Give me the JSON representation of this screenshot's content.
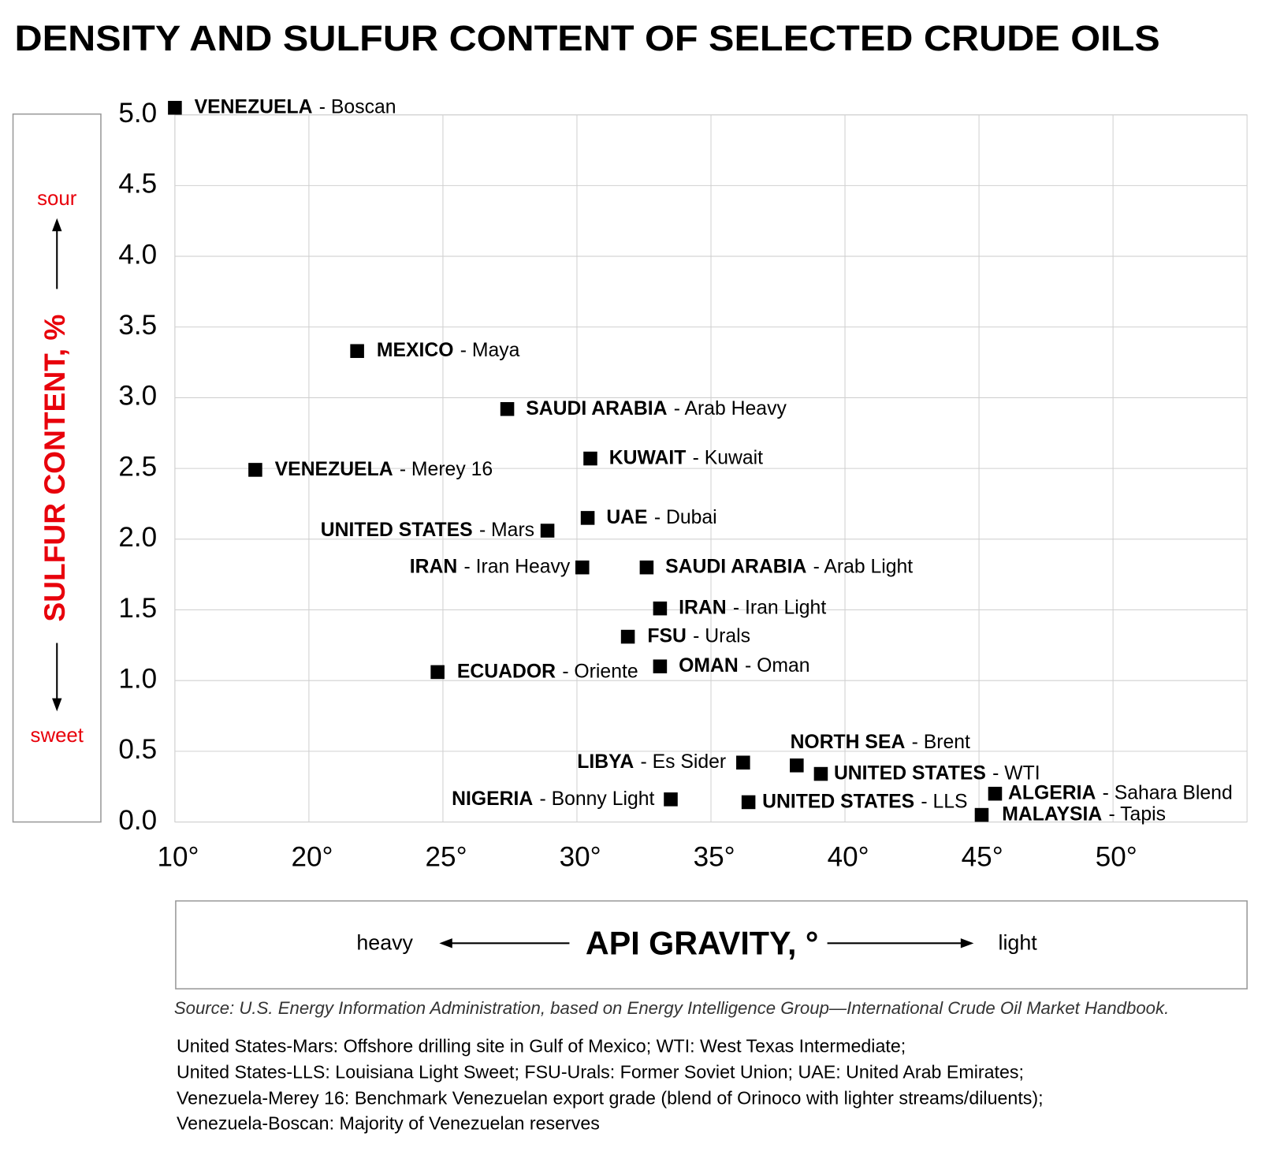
{
  "chart_data": {
    "type": "scatter",
    "title": "DENSITY AND SULFUR CONTENT OF SELECTED CRUDE OILS",
    "y_label": "SULFUR CONTENT, %",
    "y_top_note": "sour",
    "y_bottom_note": "sweet",
    "x_label": "API GRAVITY, °",
    "x_left_note": "heavy",
    "x_right_note": "light",
    "source": "Source: U.S. Energy Information Administration, based on Energy Intelligence Group—International Crude Oil Market Handbook.",
    "notes": [
      "United States-Mars: Offshore drilling site in Gulf of Mexico; WTI: West Texas Intermediate;",
      "United States-LLS: Louisiana Light Sweet; FSU-Urals: Former Soviet Union; UAE: United Arab Emirates;",
      "Venezuela-Merey 16: Benchmark Venezuelan export grade (blend of Orinoco with lighter streams/diluents);",
      "Venezuela-Boscan: Majority of Venezuelan reserves"
    ],
    "xlim": [
      10,
      55
    ],
    "xticks": [
      {
        "value": 10,
        "label": "10°"
      },
      {
        "value": 20,
        "label": "20°"
      },
      {
        "value": 25,
        "label": "25°"
      },
      {
        "value": 30,
        "label": "30°"
      },
      {
        "value": 35,
        "label": "35°"
      },
      {
        "value": 40,
        "label": "40°"
      },
      {
        "value": 45,
        "label": "45°"
      },
      {
        "value": 50,
        "label": "50°"
      }
    ],
    "ylim": [
      0,
      5
    ],
    "yticks": [
      {
        "value": 0,
        "label": "0.0"
      },
      {
        "value": 0.5,
        "label": "0.5"
      },
      {
        "value": 1,
        "label": "1.0"
      },
      {
        "value": 1.5,
        "label": "1.5"
      },
      {
        "value": 2,
        "label": "2.0"
      },
      {
        "value": 2.5,
        "label": "2.5"
      },
      {
        "value": 3,
        "label": "3.0"
      },
      {
        "value": 3.5,
        "label": "3.5"
      },
      {
        "value": 4,
        "label": "4.0"
      },
      {
        "value": 4.5,
        "label": "4.5"
      },
      {
        "value": 5,
        "label": "5.0"
      }
    ],
    "grid": true,
    "color": "#000000",
    "countries": [
      "VENEZUELA",
      "MEXICO",
      "SAUDI ARABIA",
      "KUWAIT",
      "VENEZUELA",
      "UAE",
      "UNITED STATES",
      "IRAN",
      "SAUDI ARABIA",
      "IRAN",
      "FSU",
      "OMAN",
      "ECUADOR",
      "NORTH SEA",
      "LIBYA",
      "UNITED STATES",
      "ALGERIA",
      "NIGERIA",
      "UNITED STATES",
      "MALAYSIA"
    ],
    "grades": [
      "- Boscan",
      "- Maya",
      "- Arab Heavy",
      "- Kuwait",
      "- Merey 16",
      "- Dubai",
      "- Mars",
      "- Iran Heavy",
      "- Arab Light",
      "- Iran Light",
      "- Urals",
      "- Oman",
      "- Oriente",
      "- Brent",
      "- Es Sider",
      "- WTI",
      "- Sahara Blend",
      "- Bonny Light",
      "- LLS",
      "- Tapis"
    ],
    "x": [
      10,
      21.8,
      27.4,
      30.5,
      16,
      30.4,
      28.9,
      30.2,
      32.6,
      33.1,
      31.9,
      33.1,
      24.8,
      38.2,
      36.2,
      39.1,
      45.6,
      33.5,
      36.4,
      45.1
    ],
    "values": [
      5.05,
      3.33,
      2.92,
      2.57,
      2.49,
      2.15,
      2.06,
      1.8,
      1.8,
      1.51,
      1.31,
      1.1,
      1.06,
      0.4,
      0.42,
      0.34,
      0.2,
      0.16,
      0.14,
      0.05
    ]
  }
}
